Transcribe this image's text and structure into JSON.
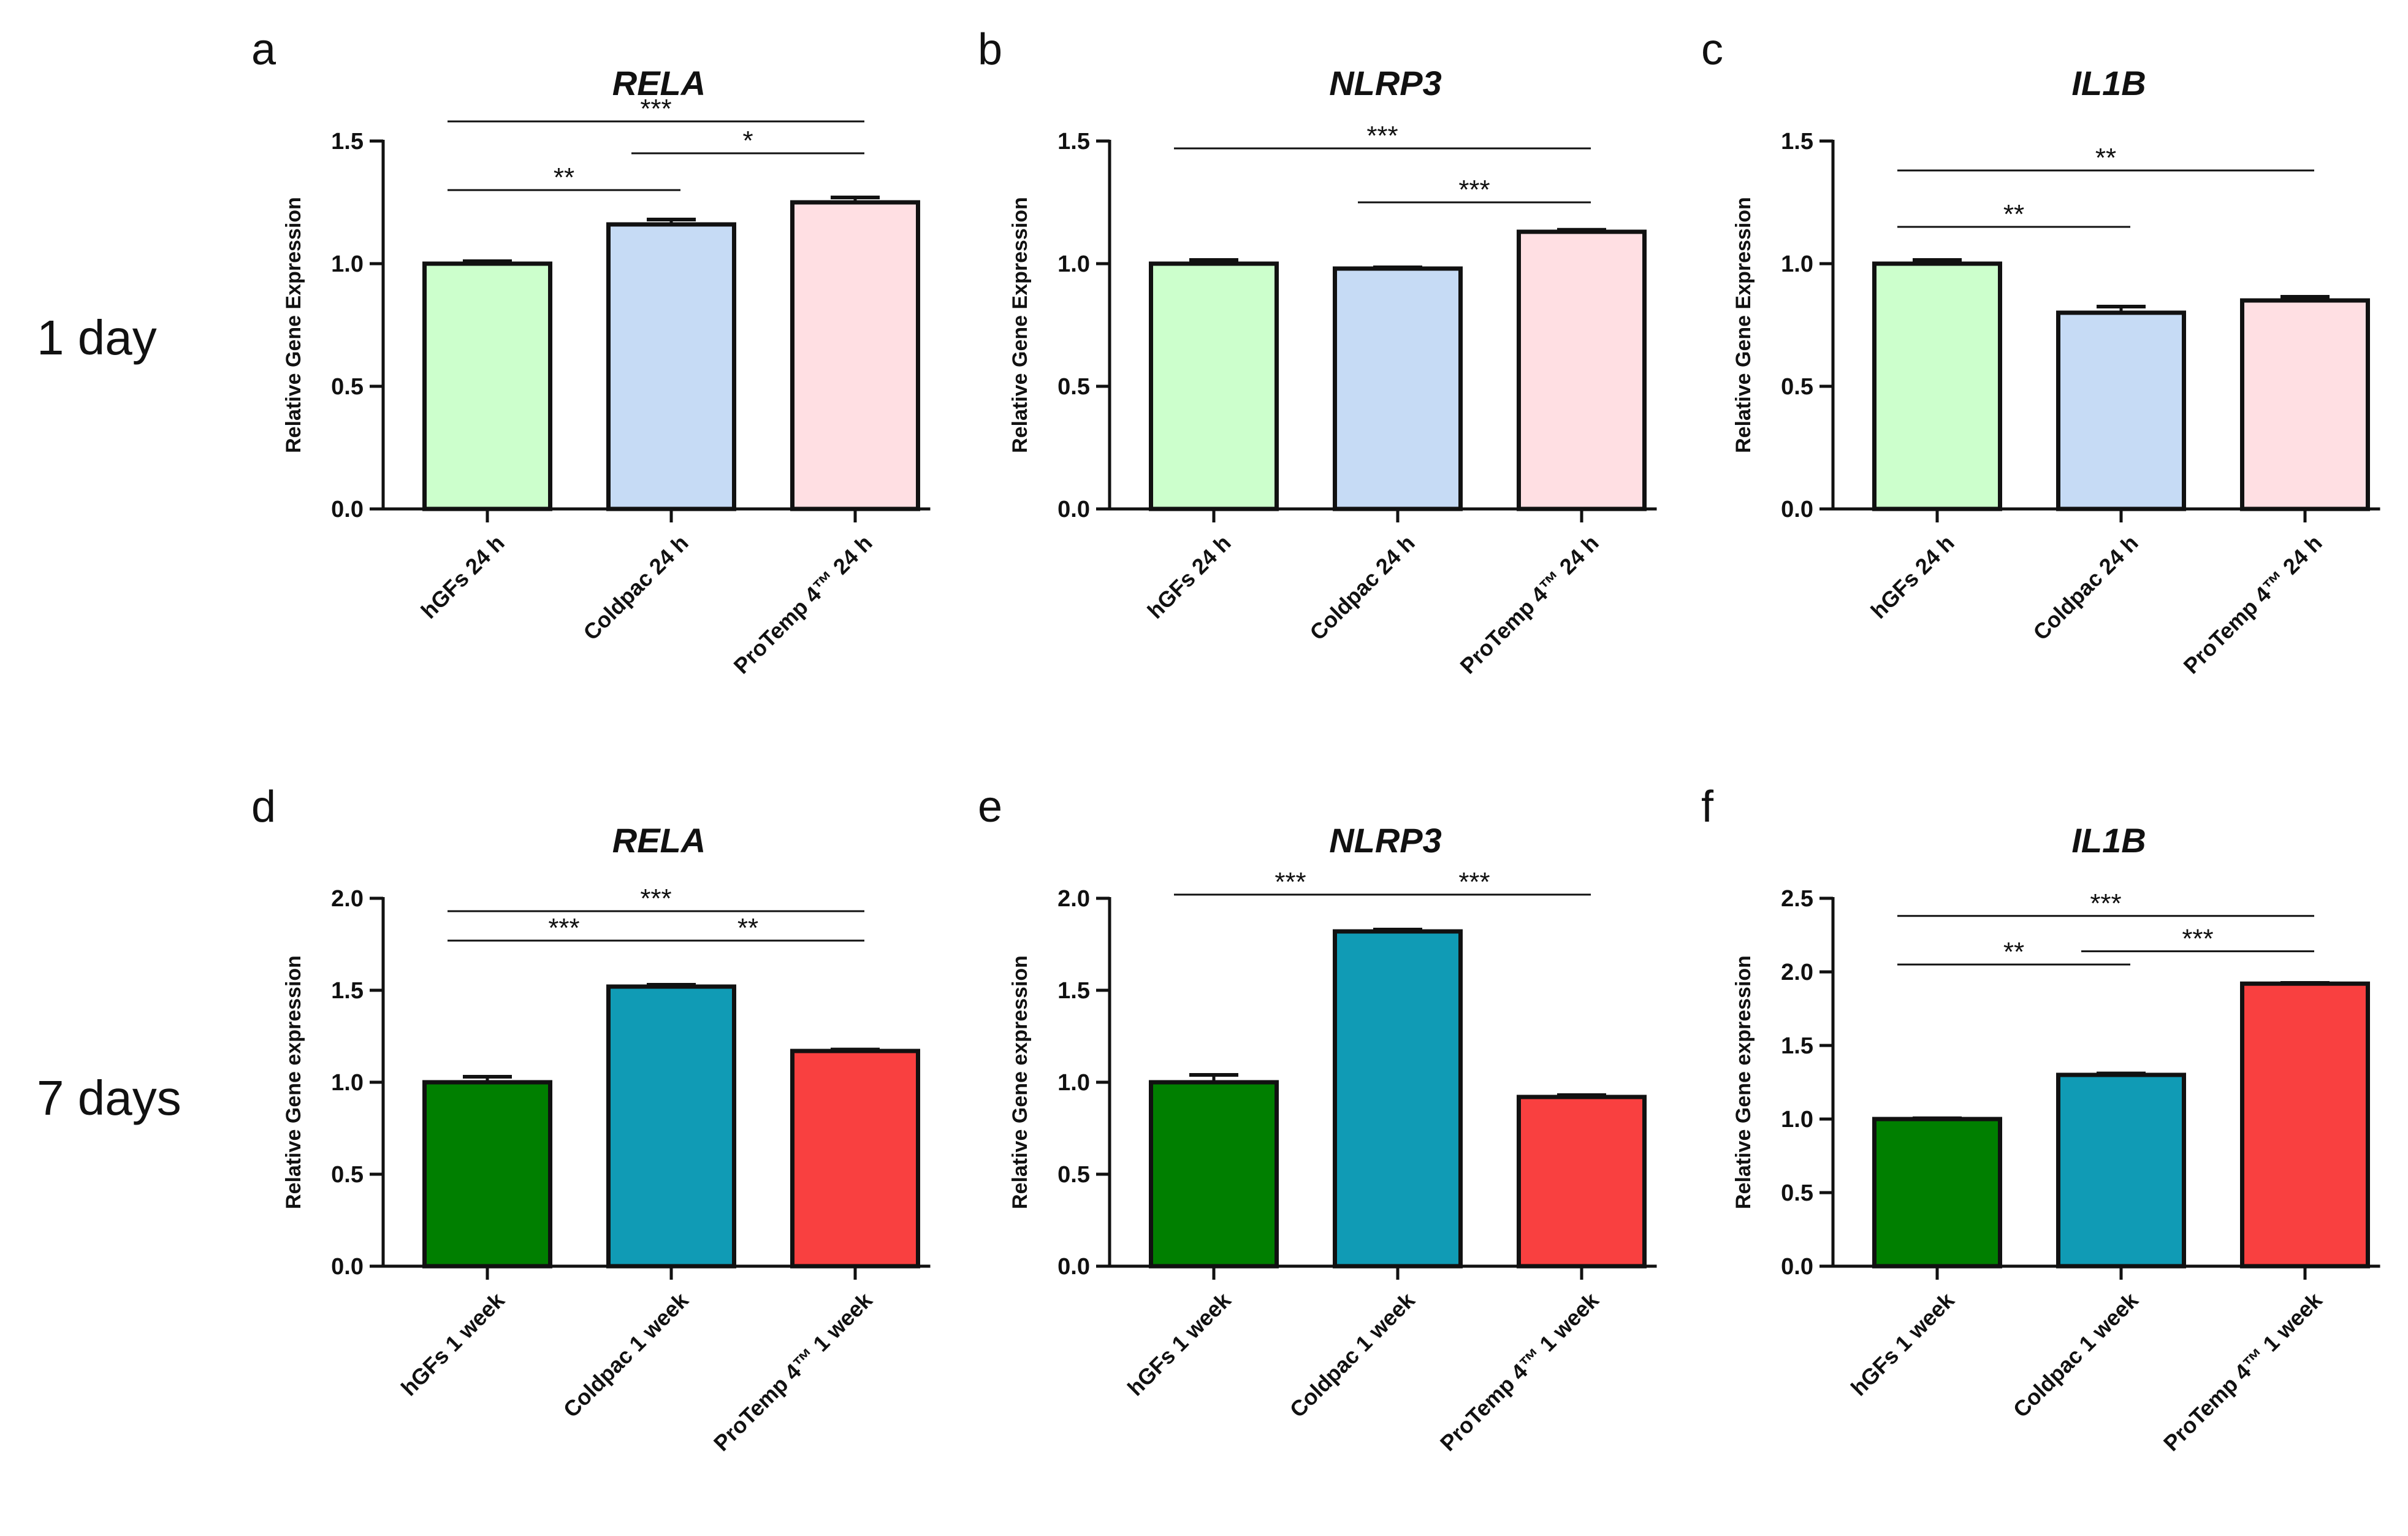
{
  "row_labels": [
    "1 day",
    "7 days"
  ],
  "chart_data": [
    {
      "panel": "a",
      "type": "bar",
      "title": "RELA",
      "ylabel": "Relative Gene Expression",
      "ylim": [
        0,
        1.5
      ],
      "yticks": [
        "0.0",
        "0.5",
        "1.0",
        "1.5"
      ],
      "categories": [
        "hGFs 24 h",
        "Coldpac 24 h",
        "ProTemp 4™ 24 h"
      ],
      "values": [
        1.0,
        1.16,
        1.25
      ],
      "errors": [
        0.01,
        0.02,
        0.02
      ],
      "colors": [
        "#ccffcc",
        "#c6dbf5",
        "#ffdfe3"
      ],
      "significance": [
        {
          "from": 0,
          "to": 2,
          "label": "***",
          "y": 1.58
        },
        {
          "from": 1,
          "to": 2,
          "label": "*",
          "y": 1.45
        },
        {
          "from": 0,
          "to": 1,
          "label": "**",
          "y": 1.3
        }
      ]
    },
    {
      "panel": "b",
      "type": "bar",
      "title": "NLRP3",
      "ylabel": "Relative Gene Expression",
      "ylim": [
        0,
        1.5
      ],
      "yticks": [
        "0.0",
        "0.5",
        "1.0",
        "1.5"
      ],
      "categories": [
        "hGFs 24 h",
        "Coldpac 24 h",
        "ProTemp 4™ 24 h"
      ],
      "values": [
        1.0,
        0.98,
        1.13
      ],
      "errors": [
        0.015,
        0.005,
        0.008
      ],
      "colors": [
        "#ccffcc",
        "#c6dbf5",
        "#ffdfe3"
      ],
      "significance": [
        {
          "from": 0,
          "to": 2,
          "label": "***",
          "y": 1.47
        },
        {
          "from": 1,
          "to": 2,
          "label": "***",
          "y": 1.25
        }
      ]
    },
    {
      "panel": "c",
      "type": "bar",
      "title": "IL1B",
      "ylabel": "Relative Gene Expression",
      "ylim": [
        0,
        1.5
      ],
      "yticks": [
        "0.0",
        "0.5",
        "1.0",
        "1.5"
      ],
      "categories": [
        "hGFs 24 h",
        "Coldpac 24 h",
        "ProTemp 4™ 24 h"
      ],
      "values": [
        1.0,
        0.8,
        0.85
      ],
      "errors": [
        0.015,
        0.025,
        0.015
      ],
      "colors": [
        "#ccffcc",
        "#c6dbf5",
        "#ffdfe3"
      ],
      "significance": [
        {
          "from": 0,
          "to": 2,
          "label": "**",
          "y": 1.38
        },
        {
          "from": 0,
          "to": 1,
          "label": "**",
          "y": 1.15
        }
      ]
    },
    {
      "panel": "d",
      "type": "bar",
      "title": "RELA",
      "ylabel": "Relative Gene expression",
      "ylim": [
        0,
        2.0
      ],
      "yticks": [
        "0.0",
        "0.5",
        "1.0",
        "1.5",
        "2.0"
      ],
      "categories": [
        "hGFs 1 week",
        "Coldpac 1 week",
        "ProTemp 4™ 1 week"
      ],
      "values": [
        1.0,
        1.52,
        1.17
      ],
      "errors": [
        0.03,
        0.01,
        0.008
      ],
      "colors": [
        "#007f00",
        "#109bb5",
        "#f94040"
      ],
      "significance": [
        {
          "from": 0,
          "to": 2,
          "label": "***",
          "y": 1.93
        },
        {
          "from": 0,
          "to": 1,
          "label": "***",
          "y": 1.77
        },
        {
          "from": 1,
          "to": 2,
          "label": "**",
          "y": 1.77
        }
      ]
    },
    {
      "panel": "e",
      "type": "bar",
      "title": "NLRP3",
      "ylabel": "Relative Gene expression",
      "ylim": [
        0,
        2.0
      ],
      "yticks": [
        "0.0",
        "0.5",
        "1.0",
        "1.5",
        "2.0"
      ],
      "categories": [
        "hGFs 1 week",
        "Coldpac 1 week",
        "ProTemp 4™ 1 week"
      ],
      "values": [
        1.0,
        1.82,
        0.92
      ],
      "errors": [
        0.04,
        0.01,
        0.01
      ],
      "colors": [
        "#007f00",
        "#109bb5",
        "#f94040"
      ],
      "significance": [
        {
          "from": 0,
          "to": 1,
          "label": "***",
          "y": 2.02
        },
        {
          "from": 1,
          "to": 2,
          "label": "***",
          "y": 2.02
        }
      ]
    },
    {
      "panel": "f",
      "type": "bar",
      "title": "IL1B",
      "ylabel": "Relative Gene expression",
      "ylim": [
        0,
        2.5
      ],
      "yticks": [
        "0.0",
        "0.5",
        "1.0",
        "1.5",
        "2.0",
        "2.5"
      ],
      "categories": [
        "hGFs 1 week",
        "Coldpac 1 week",
        "ProTemp 4™ 1 week"
      ],
      "values": [
        1.0,
        1.3,
        1.92
      ],
      "errors": [
        0.005,
        0.01,
        0.005
      ],
      "colors": [
        "#007f00",
        "#109bb5",
        "#f94040"
      ],
      "significance": [
        {
          "from": 0,
          "to": 2,
          "label": "***",
          "y": 2.38
        },
        {
          "from": 0,
          "to": 1,
          "label": "**",
          "y": 2.05
        },
        {
          "from": 1,
          "to": 2,
          "label": "***",
          "y": 2.14
        }
      ]
    }
  ]
}
